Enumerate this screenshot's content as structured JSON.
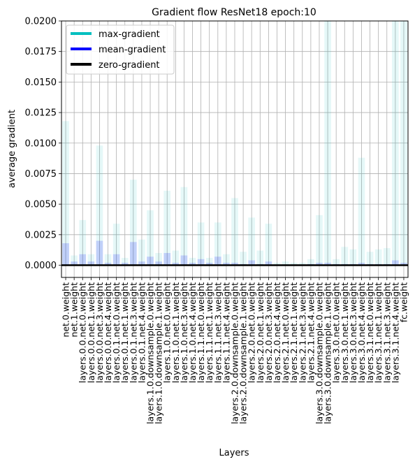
{
  "chart_data": {
    "type": "bar",
    "title": "Gradient flow ResNet18 epoch:10",
    "xlabel": "Layers",
    "ylabel": "average gradient",
    "ylim": [
      -0.001,
      0.02
    ],
    "yticks": [
      "0.0000",
      "0.0025",
      "0.0050",
      "0.0075",
      "0.0100",
      "0.0125",
      "0.0150",
      "0.0175",
      "0.0200"
    ],
    "grid": true,
    "legend_position": "top-left",
    "categories": [
      "net.0.weight",
      "net.1.weight",
      "layers.0.0.net.0.weight",
      "layers.0.0.net.1.weight",
      "layers.0.0.net.3.weight",
      "layers.0.0.net.4.weight",
      "layers.0.1.net.0.weight",
      "layers.0.1.net.1.weight",
      "layers.0.1.net.3.weight",
      "layers.0.1.net.4.weight",
      "layers.1.0.downsample.0.weight",
      "layers.1.0.downsample.1.weight",
      "layers.1.0.net.0.weight",
      "layers.1.0.net.1.weight",
      "layers.1.0.net.3.weight",
      "layers.1.0.net.4.weight",
      "layers.1.1.net.0.weight",
      "layers.1.1.net.1.weight",
      "layers.1.1.net.3.weight",
      "layers.1.1.net.4.weight",
      "layers.2.0.downsample.0.weight",
      "layers.2.0.downsample.1.weight",
      "layers.2.0.net.0.weight",
      "layers.2.0.net.1.weight",
      "layers.2.0.net.3.weight",
      "layers.2.0.net.4.weight",
      "layers.2.1.net.0.weight",
      "layers.2.1.net.1.weight",
      "layers.2.1.net.3.weight",
      "layers.2.1.net.4.weight",
      "layers.3.0.downsample.0.weight",
      "layers.3.0.downsample.1.weight",
      "layers.3.0.net.0.weight",
      "layers.3.0.net.1.weight",
      "layers.3.0.net.3.weight",
      "layers.3.0.net.4.weight",
      "layers.3.1.net.0.weight",
      "layers.3.1.net.1.weight",
      "layers.3.1.net.3.weight",
      "layers.3.1.net.4.weight",
      "fc.weight"
    ],
    "series": [
      {
        "name": "max-gradient",
        "color": "#00bfbf",
        "values": [
          0.0118,
          0.0008,
          0.0037,
          0.0009,
          0.0098,
          0.0009,
          0.0034,
          0.0006,
          0.007,
          0.0021,
          0.0045,
          0.001,
          0.0061,
          0.0012,
          0.0064,
          0.0006,
          0.0035,
          0.0006,
          0.0035,
          0.0009,
          0.0055,
          0.0011,
          0.0039,
          0.0012,
          0.0034,
          0.0002,
          0.0003,
          0.0002,
          0.0002,
          0.0005,
          0.0041,
          0.02,
          0.0005,
          0.0015,
          0.0013,
          0.0088,
          0.0011,
          0.0013,
          0.0014,
          0.02,
          0.02
        ]
      },
      {
        "name": "mean-gradient",
        "color": "#0000ff",
        "values": [
          0.0018,
          0.0003,
          0.0009,
          0.0003,
          0.002,
          0.0002,
          0.0009,
          0.0002,
          0.0019,
          0.0003,
          0.0007,
          0.0003,
          0.001,
          0.0002,
          0.0008,
          0.0002,
          0.0005,
          0.0002,
          0.0007,
          0.0002,
          0.0002,
          0.0001,
          0.0004,
          0.0001,
          0.0003,
          5e-05,
          5e-05,
          5e-05,
          5e-05,
          0.0001,
          0.0002,
          0.0002,
          0.0001,
          0.0001,
          0.0001,
          0.0002,
          0.0001,
          0.0001,
          0.0001,
          0.0004,
          0.0002
        ]
      }
    ],
    "legend": [
      {
        "label": "max-gradient",
        "color": "#00bfbf"
      },
      {
        "label": "mean-gradient",
        "color": "#0000ff"
      },
      {
        "label": "zero-gradient",
        "color": "#000000"
      }
    ],
    "zero_line_color": "#000000"
  }
}
